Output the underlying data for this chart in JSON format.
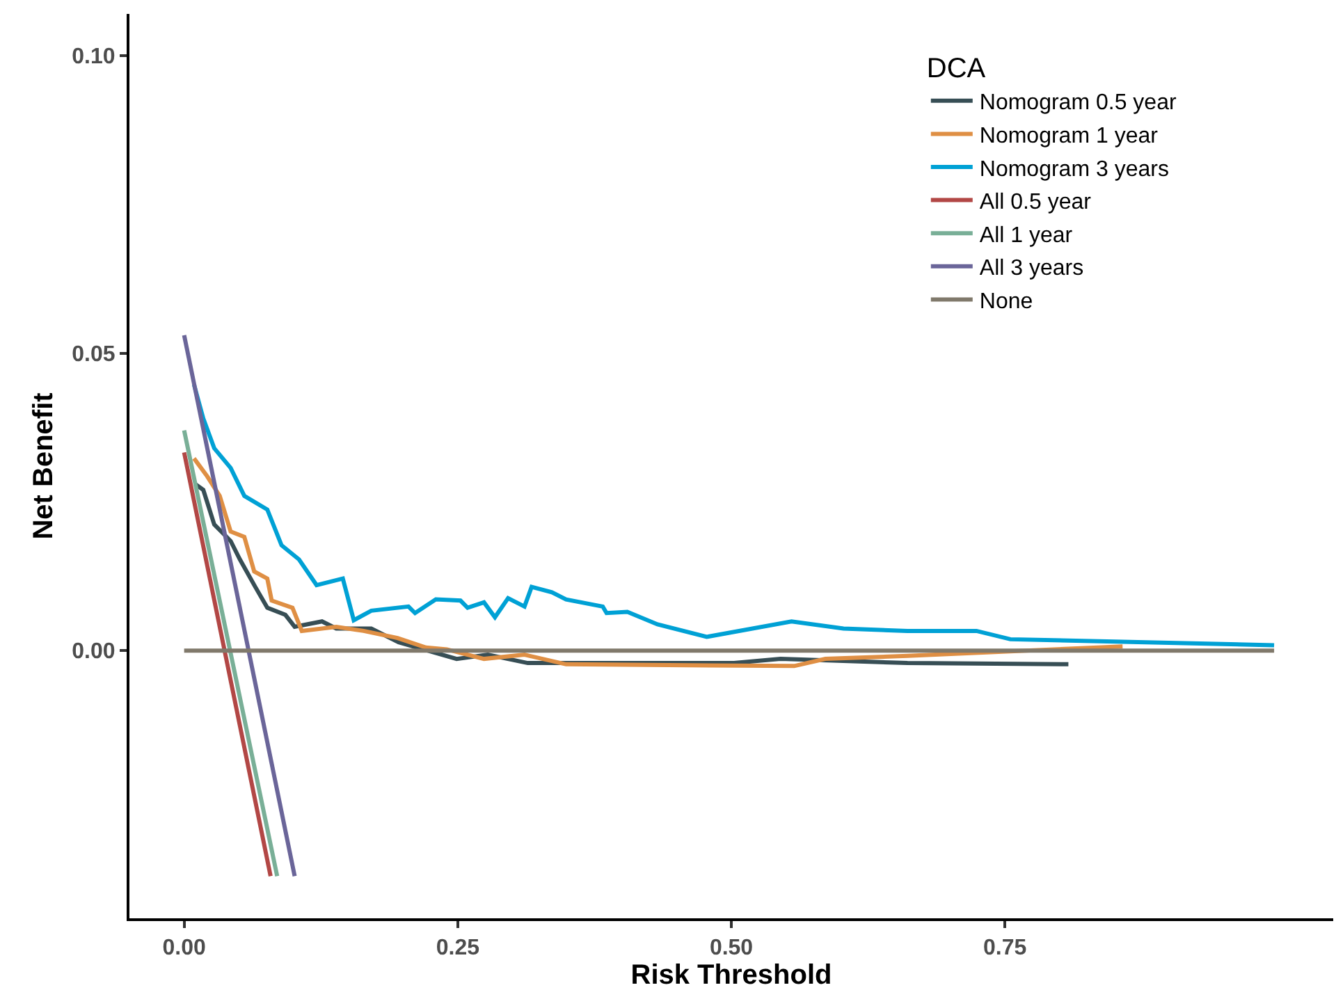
{
  "chart_data": {
    "type": "line",
    "xlabel": "Risk Threshold",
    "ylabel": "Net Benefit",
    "legend_title": "DCA",
    "legend": "top right",
    "grid": false,
    "marker": "none",
    "line_style": "solid",
    "xlim": [
      -0.05,
      1.05
    ],
    "ylim": [
      -0.045,
      0.107
    ],
    "xticks": [
      {
        "value": 0,
        "label": "0.00"
      },
      {
        "value": 0.25,
        "label": "0.25"
      },
      {
        "value": 0.5,
        "label": "0.50"
      },
      {
        "value": 0.75,
        "label": "0.75"
      }
    ],
    "yticks": [
      {
        "value": 0,
        "label": "0.00"
      },
      {
        "value": 0.05,
        "label": "0.05"
      },
      {
        "value": 0.1,
        "label": "0.10"
      }
    ],
    "series": [
      {
        "name": "Nomogram 0.5 year",
        "color": "#374e55",
        "x": [
          0.01,
          0.0175,
          0.0275,
          0.0425,
          0.051,
          0.065,
          0.076,
          0.0925,
          0.101,
          0.126,
          0.139,
          0.171,
          0.196,
          0.249,
          0.2775,
          0.314,
          0.5025,
          0.545,
          0.661,
          0.808
        ],
        "values": [
          0.028,
          0.027,
          0.0212,
          0.0184,
          0.0153,
          0.0107,
          0.0072,
          0.006,
          0.004,
          0.0049,
          0.0037,
          0.0037,
          0.0014,
          -0.0014,
          -0.0007,
          -0.0021,
          -0.0021,
          -0.0014,
          -0.0021,
          -0.0023
        ]
      },
      {
        "name": "Nomogram 1 year",
        "color": "#df8f44",
        "x": [
          0.009,
          0.021,
          0.0325,
          0.0425,
          0.055,
          0.064,
          0.076,
          0.08,
          0.099,
          0.1075,
          0.139,
          0.164,
          0.195,
          0.221,
          0.24,
          0.274,
          0.311,
          0.349,
          0.5575,
          0.586,
          0.661,
          0.8575
        ],
        "values": [
          0.0323,
          0.0293,
          0.026,
          0.02,
          0.0191,
          0.0133,
          0.0121,
          0.0084,
          0.0072,
          0.0033,
          0.004,
          0.0033,
          0.0021,
          0.0005,
          0.0002,
          -0.0014,
          -0.0007,
          -0.0023,
          -0.0026,
          -0.0014,
          -0.0009,
          0.0007
        ]
      },
      {
        "name": "Nomogram 3 years",
        "color": "#00a1d5",
        "x": [
          0.009,
          0.0175,
          0.0275,
          0.0425,
          0.055,
          0.076,
          0.089,
          0.105,
          0.121,
          0.145,
          0.155,
          0.171,
          0.205,
          0.211,
          0.23,
          0.2525,
          0.259,
          0.274,
          0.284,
          0.296,
          0.311,
          0.3175,
          0.336,
          0.349,
          0.3825,
          0.386,
          0.405,
          0.4325,
          0.4775,
          0.555,
          0.6025,
          0.661,
          0.724,
          0.755,
          0.996
        ],
        "values": [
          0.0447,
          0.039,
          0.034,
          0.0307,
          0.026,
          0.0237,
          0.0177,
          0.0153,
          0.011,
          0.0121,
          0.0051,
          0.0067,
          0.0074,
          0.0063,
          0.0086,
          0.0084,
          0.0072,
          0.0081,
          0.0056,
          0.0088,
          0.0074,
          0.0107,
          0.0098,
          0.0086,
          0.0074,
          0.0063,
          0.0065,
          0.0044,
          0.0023,
          0.0049,
          0.0037,
          0.0033,
          0.0033,
          0.0019,
          0.0009
        ]
      },
      {
        "name": "All 0.5 year",
        "color": "#b24745",
        "x": [
          0,
          0.079
        ],
        "values": [
          0.0333,
          -0.0379
        ]
      },
      {
        "name": "All 1 year",
        "color": "#79af97",
        "x": [
          0,
          0.085
        ],
        "values": [
          0.037,
          -0.0379
        ]
      },
      {
        "name": "All 3 years",
        "color": "#6a6599",
        "x": [
          0,
          0.101
        ],
        "values": [
          0.053,
          -0.0379
        ]
      },
      {
        "name": "None",
        "color": "#80796b",
        "x": [
          0,
          0.996
        ],
        "values": [
          0,
          0
        ]
      }
    ]
  }
}
